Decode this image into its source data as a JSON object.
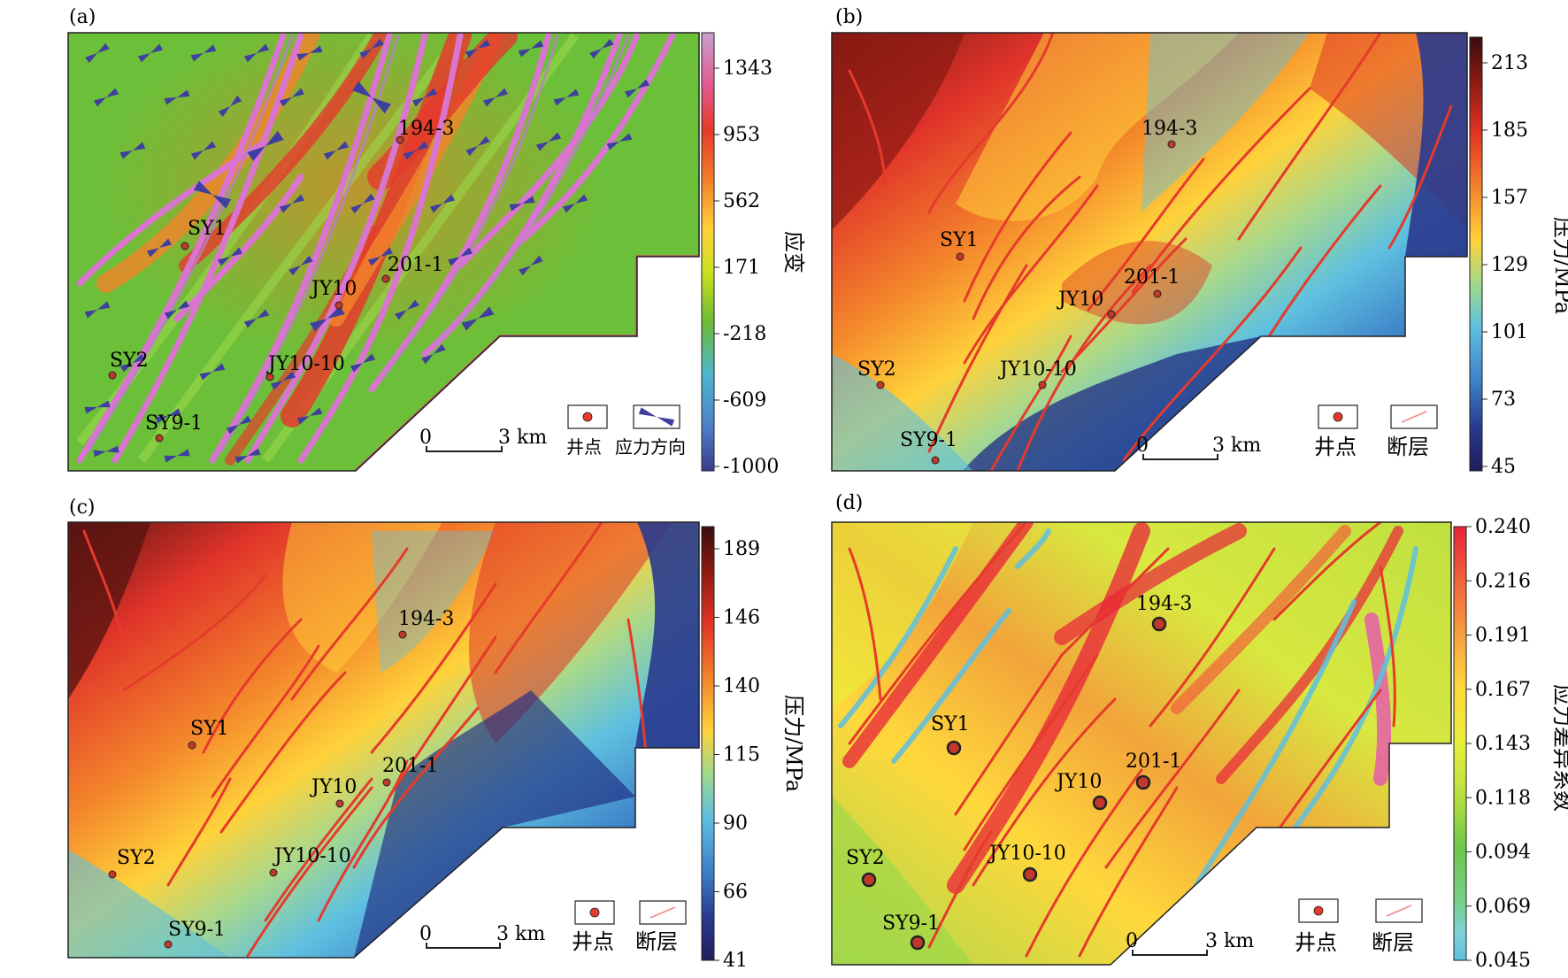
{
  "panels": [
    {
      "tag": "(a)",
      "colorbar": {
        "title": "应变",
        "ticks": [
          "1343",
          "953",
          "562",
          "171",
          "-218",
          "-609",
          "-1000"
        ],
        "colors": [
          "#c7a0d0",
          "#e35a8f",
          "#e53a2c",
          "#f47b2a",
          "#ffd23a",
          "#c8e020",
          "#6dbb35",
          "#4db6d0",
          "#4d80c8",
          "#3a3c8f"
        ]
      },
      "wells": [
        {
          "name": "194-3"
        },
        {
          "name": "SY1"
        },
        {
          "name": "201-1"
        },
        {
          "name": "JY10"
        },
        {
          "name": "SY2"
        },
        {
          "name": "JY10-10"
        },
        {
          "name": "SY9-1"
        }
      ],
      "scale": {
        "zero": "0",
        "label": "3 km"
      },
      "legend": [
        {
          "label": "井点"
        },
        {
          "label": "应力方向"
        }
      ]
    },
    {
      "tag": "(b)",
      "colorbar": {
        "title": "压力/MPa",
        "ticks": [
          "213",
          "185",
          "157",
          "129",
          "101",
          "73",
          "45"
        ],
        "colors": [
          "#3a0d0d",
          "#8a1a12",
          "#e03324",
          "#f4852b",
          "#ffd23a",
          "#9fd98a",
          "#5ec0e0",
          "#3c7dc7",
          "#2a3a8e",
          "#1f1e5c"
        ]
      },
      "wells": [
        {
          "name": "194-3"
        },
        {
          "name": "SY1"
        },
        {
          "name": "201-1"
        },
        {
          "name": "JY10"
        },
        {
          "name": "SY2"
        },
        {
          "name": "JY10-10"
        },
        {
          "name": "SY9-1"
        }
      ],
      "scale": {
        "zero": "0",
        "label": "3 km"
      },
      "legend": [
        {
          "label": "井点"
        },
        {
          "label": "断层"
        }
      ]
    },
    {
      "tag": "(c)",
      "colorbar": {
        "title": "压力/MPa",
        "ticks": [
          "189",
          "146",
          "140",
          "115",
          "90",
          "66",
          "41"
        ],
        "colors": [
          "#3a0d0d",
          "#8a1a12",
          "#e03324",
          "#f4852b",
          "#ffd23a",
          "#9fd98a",
          "#5ec0e0",
          "#3c7dc7",
          "#2a3a8e",
          "#1f1e5c"
        ]
      },
      "wells": [
        {
          "name": "194-3"
        },
        {
          "name": "SY1"
        },
        {
          "name": "201-1"
        },
        {
          "name": "JY10"
        },
        {
          "name": "SY2"
        },
        {
          "name": "JY10-10"
        },
        {
          "name": "SY9-1"
        }
      ],
      "scale": {
        "zero": "0",
        "label": "3 km"
      },
      "legend": [
        {
          "label": "井点"
        },
        {
          "label": "断层"
        }
      ]
    },
    {
      "tag": "(d)",
      "colorbar": {
        "title": "应力差异系数",
        "ticks": [
          "0.240",
          "0.216",
          "0.191",
          "0.167",
          "0.143",
          "0.118",
          "0.094",
          "0.069",
          "0.045"
        ],
        "colors": [
          "#e8223a",
          "#f2603a",
          "#f7a040",
          "#ffd83c",
          "#e8ee3a",
          "#b8e040",
          "#6cc84a",
          "#78d08a",
          "#7fd0d8",
          "#5fc0e0"
        ]
      },
      "wells": [
        {
          "name": "194-3"
        },
        {
          "name": "SY1"
        },
        {
          "name": "201-1"
        },
        {
          "name": "JY10"
        },
        {
          "name": "SY2"
        },
        {
          "name": "JY10-10"
        },
        {
          "name": "SY9-1"
        }
      ],
      "scale": {
        "zero": "0",
        "label": "3 km"
      },
      "legend": [
        {
          "label": "井点"
        },
        {
          "label": "断层"
        }
      ]
    }
  ]
}
